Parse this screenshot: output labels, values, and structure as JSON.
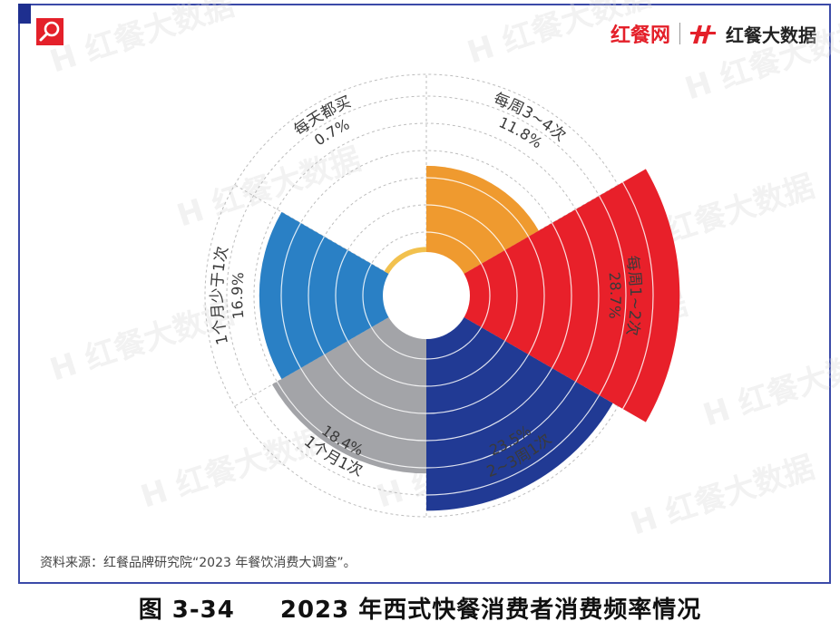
{
  "brand": {
    "name_1": "红餐网",
    "name_2": "红餐大数据",
    "logo_icon": "magnifier-icon",
    "mark_icon": "h-logo-icon",
    "accent": "#e4202a",
    "frame_color": "#3b4aa8"
  },
  "watermark": "红餐大数据",
  "source": "资料来源：红餐品牌研究院“2023 年餐饮消费大调查”。",
  "caption": {
    "figure_number": "图 3-34",
    "title": "2023 年西式快餐消费者消费频率情况"
  },
  "chart_data": {
    "type": "pie",
    "variant": "nightingale-rose",
    "title": "",
    "categories": [
      "每周3~4次",
      "每周1~2次",
      "2~3周1次",
      "1个月1次",
      "1个月少于1次",
      "每天都买"
    ],
    "values": [
      11.8,
      28.7,
      23.5,
      18.4,
      16.9,
      0.7
    ],
    "value_labels": [
      "11.8%",
      "28.7%",
      "23.5%",
      "18.4%",
      "16.9%",
      "0.7%"
    ],
    "colors": [
      "#ef9a2f",
      "#e8202a",
      "#213a94",
      "#a3a4a8",
      "#2a80c5",
      "#f2c14e"
    ],
    "grid": true,
    "legend": "none"
  }
}
